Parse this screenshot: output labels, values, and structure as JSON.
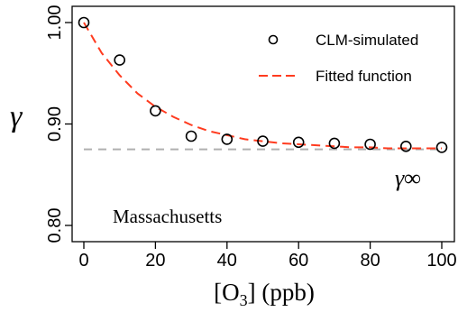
{
  "chart_data": {
    "type": "scatter",
    "title": "",
    "xlabel_main": "[O",
    "xlabel_sub": "3",
    "xlabel_tail": "] (ppb)",
    "ylabel": "γ",
    "xlim": [
      0,
      100
    ],
    "ylim": [
      0.8,
      1.0
    ],
    "x_ticks": [
      0,
      20,
      40,
      60,
      80,
      100
    ],
    "x_tick_labels": [
      "0",
      "20",
      "40",
      "60",
      "80",
      "100"
    ],
    "y_ticks": [
      0.8,
      0.9,
      1.0
    ],
    "y_tick_labels": [
      "0.80",
      "0.90",
      "1.00"
    ],
    "grid": false,
    "legend_position": "top-right",
    "series": [
      {
        "name": "CLM-simulated",
        "kind": "points",
        "color": "#000000",
        "x": [
          0,
          10,
          20,
          30,
          40,
          50,
          60,
          70,
          80,
          90,
          100
        ],
        "y": [
          1.0,
          0.963,
          0.913,
          0.888,
          0.885,
          0.883,
          0.882,
          0.881,
          0.88,
          0.878,
          0.877
        ]
      },
      {
        "name": "Fitted function",
        "kind": "dashed-line",
        "color": "#ff3b1f",
        "x": [
          0,
          5,
          10,
          15,
          20,
          25,
          30,
          35,
          40,
          45,
          50,
          55,
          60,
          65,
          70,
          75,
          80,
          85,
          90,
          95,
          100
        ],
        "y": [
          1.0,
          0.97,
          0.948,
          0.93,
          0.917,
          0.907,
          0.899,
          0.893,
          0.889,
          0.885,
          0.883,
          0.881,
          0.88,
          0.879,
          0.878,
          0.877,
          0.877,
          0.876,
          0.876,
          0.876,
          0.876
        ]
      }
    ],
    "asymptote": {
      "y": 0.875,
      "color": "#b0b0b0",
      "label": "γ∞"
    },
    "annotation": "Massachusetts"
  }
}
